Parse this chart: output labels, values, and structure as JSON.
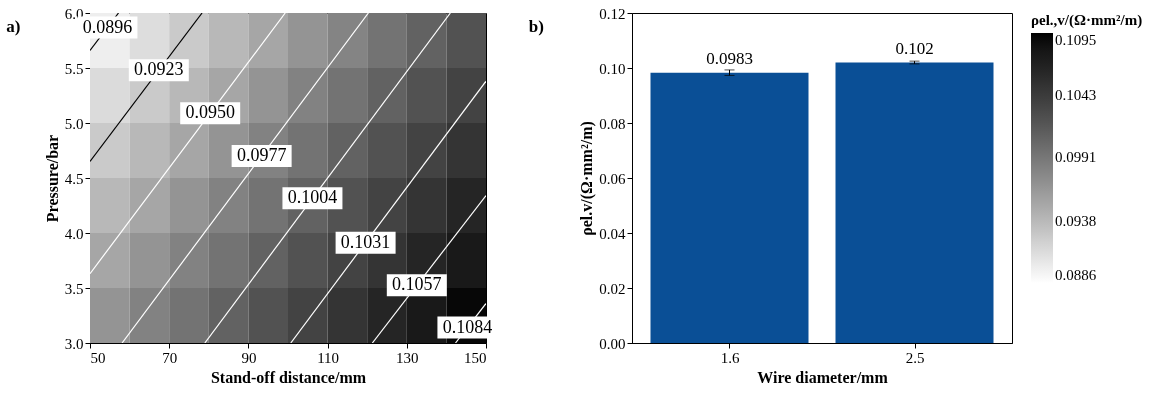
{
  "chart_data": [
    {
      "type": "heatmap",
      "clabel": "ρel.,v/(Ω·mm²/m)",
      "tick_labels": false,
      "categories": [
        null,
        null,
        null,
        null,
        null,
        null,
        null,
        null,
        null,
        null
      ],
      "y_categories": [
        null,
        null,
        null,
        null,
        null,
        null
      ],
      "cells": [
        [
          0.0898,
          0.0911,
          0.0925,
          0.0939,
          0.0953,
          0.0967,
          0.098,
          0.0994,
          0.1008,
          0.1022
        ],
        [
          0.0912,
          0.0925,
          0.0939,
          0.0953,
          0.0967,
          0.0981,
          0.0994,
          0.1008,
          0.1022,
          0.1036
        ],
        [
          0.0925,
          0.0939,
          0.0953,
          0.0967,
          0.0981,
          0.0994,
          0.1008,
          0.1022,
          0.1036,
          0.105
        ],
        [
          0.0939,
          0.0953,
          0.0967,
          0.0981,
          0.0994,
          0.1008,
          0.1022,
          0.1036,
          0.105,
          0.1064
        ],
        [
          0.0953,
          0.0967,
          0.0981,
          0.0994,
          0.1008,
          0.1022,
          0.1036,
          0.105,
          0.1064,
          0.1077
        ],
        [
          0.0967,
          0.0981,
          0.0994,
          0.1008,
          0.1022,
          0.1036,
          0.105,
          0.1064,
          0.1077,
          0.1091
        ]
      ],
      "clim": [
        0.0886,
        0.1095
      ],
      "cticks": [
        0.0886,
        0.0938,
        0.0991,
        0.1043,
        0.1095
      ]
    },
    {
      "type": "line",
      "xlabel": "Stand-off distance/mm",
      "ylabel": "Pressure/bar",
      "xlim": [
        50,
        150
      ],
      "xticks": [
        50,
        70,
        90,
        110,
        130,
        150
      ],
      "ylim": [
        3,
        6
      ],
      "yticks": [
        {
          "value": 3,
          "label": "3.0"
        },
        3.5,
        {
          "value": 4,
          "label": "4.0"
        },
        4.5,
        {
          "value": 5,
          "label": "5.0"
        },
        5.5,
        {
          "value": 6,
          "label": "6.0"
        }
      ],
      "series": [
        {
          "name": "0.0896",
          "color": "#000000",
          "x": [
            50,
            57.2
          ],
          "values": [
            5.66,
            6
          ]
        },
        {
          "name": "0.0923",
          "color": "#000000",
          "x": [
            50,
            78.3
          ],
          "values": [
            4.65,
            6
          ]
        },
        {
          "name": "0.0950",
          "color": "#ffffff",
          "x": [
            50,
            99.3
          ],
          "values": [
            3.63,
            6
          ]
        },
        {
          "name": "0.0977",
          "color": "#ffffff",
          "x": [
            58.1,
            120.3
          ],
          "values": [
            3,
            6
          ]
        },
        {
          "name": "0.1004",
          "color": "#ffffff",
          "x": [
            79.0,
            141
          ],
          "values": [
            3,
            6
          ]
        },
        {
          "name": "0.1031",
          "color": "#ffffff",
          "x": [
            100.7,
            150
          ],
          "values": [
            3,
            5.38
          ]
        },
        {
          "name": "0.1057",
          "color": "#ffffff",
          "x": [
            121.3,
            150
          ],
          "values": [
            3,
            4.34
          ]
        },
        {
          "name": "0.1084",
          "color": "#ffffff",
          "x": [
            142.3,
            150
          ],
          "values": [
            3,
            3.36
          ]
        }
      ],
      "annotations": [
        "a)"
      ]
    },
    {
      "type": "bar",
      "xlabel": "Wire diameter/mm",
      "ylabel": "ρel.v/(Ω·mm²/m)",
      "categories": [
        "1.6",
        "2.5"
      ],
      "values": [
        0.0983,
        0.102
      ],
      "errors": [
        0.001,
        0.0005
      ],
      "color": "#0a4f96",
      "ylim": [
        0,
        0.12
      ],
      "yticks": [
        {
          "value": 0,
          "label": "0.00"
        },
        {
          "value": 0.02,
          "label": "0.02"
        },
        {
          "value": 0.04,
          "label": "0.04"
        },
        {
          "value": 0.06,
          "label": "0.06"
        },
        {
          "value": 0.08,
          "label": "0.08"
        },
        {
          "value": 0.1,
          "label": "0.10"
        },
        {
          "value": 0.12,
          "label": "0.12"
        }
      ],
      "data_labels": true,
      "annotations": [
        "b)"
      ]
    }
  ]
}
